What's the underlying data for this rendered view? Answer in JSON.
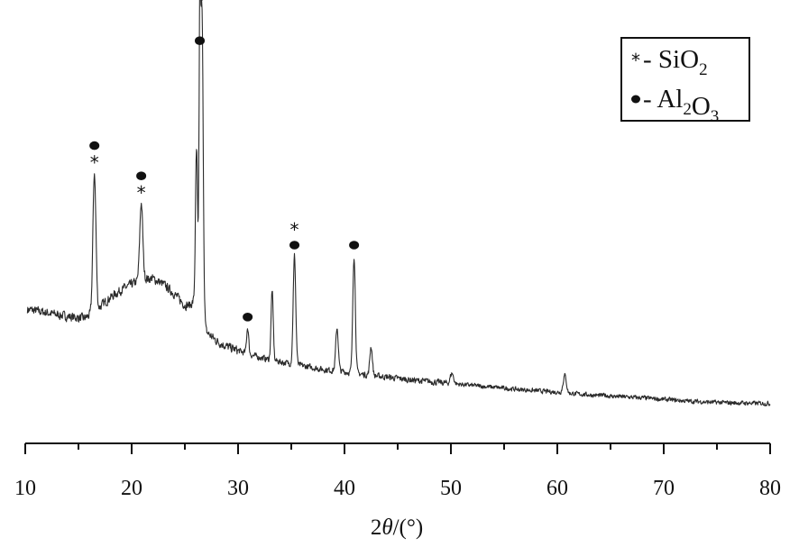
{
  "chart_data": {
    "type": "line",
    "xlabel": {
      "prefix": "2",
      "theta": "θ",
      "suffix": "/(°)"
    },
    "ylabel": "",
    "xlim": [
      10,
      80
    ],
    "ylim": [
      0,
      100
    ],
    "x_ticks": [
      10,
      20,
      30,
      40,
      50,
      60,
      70,
      80
    ],
    "grid": false,
    "legend_position": "top-right",
    "legend": [
      {
        "marker": "*",
        "dash": "-",
        "formula": [
          [
            "Si",
            false
          ],
          [
            "O",
            false
          ],
          [
            "2",
            true
          ]
        ]
      },
      {
        "marker": "●",
        "dash": "-",
        "formula": [
          [
            "Al",
            false
          ],
          [
            "2",
            true
          ],
          [
            "O",
            false
          ],
          [
            "3",
            true
          ]
        ]
      }
    ],
    "baseline": [
      [
        10,
        26
      ],
      [
        12,
        25
      ],
      [
        14,
        24
      ],
      [
        15.5,
        23.5
      ],
      [
        16.2,
        24.5
      ],
      [
        17,
        26.5
      ],
      [
        18,
        29
      ],
      [
        19,
        31
      ],
      [
        20,
        32.5
      ],
      [
        21,
        34
      ],
      [
        22,
        34
      ],
      [
        23,
        32.5
      ],
      [
        24,
        30
      ],
      [
        25,
        27
      ],
      [
        25.5,
        27
      ],
      [
        26,
        28.5
      ],
      [
        27,
        20
      ],
      [
        28,
        17.5
      ],
      [
        29,
        16
      ],
      [
        30,
        15
      ],
      [
        31,
        14
      ],
      [
        32,
        13.2
      ],
      [
        34,
        12
      ],
      [
        36,
        11
      ],
      [
        38,
        10
      ],
      [
        40,
        9.4
      ],
      [
        42,
        8.6
      ],
      [
        44,
        8
      ],
      [
        46,
        7.3
      ],
      [
        48,
        6.8
      ],
      [
        50,
        6.3
      ],
      [
        52,
        5.8
      ],
      [
        54,
        5.3
      ],
      [
        56,
        4.8
      ],
      [
        58,
        4.4
      ],
      [
        60,
        4.0
      ],
      [
        62,
        3.5
      ],
      [
        64,
        3.1
      ],
      [
        66,
        2.8
      ],
      [
        68,
        2.5
      ],
      [
        70,
        2.1
      ],
      [
        72,
        1.7
      ],
      [
        74,
        1.4
      ],
      [
        76,
        1.2
      ],
      [
        78,
        1.1
      ],
      [
        80,
        1.0
      ]
    ],
    "peaks": [
      {
        "x": 16.5,
        "y": 62,
        "w": 0.14,
        "markers": [
          "●",
          "*"
        ]
      },
      {
        "x": 20.9,
        "y": 54,
        "w": 0.14,
        "markers": [
          "●",
          "*"
        ]
      },
      {
        "x": 26.1,
        "y": 68,
        "w": 0.1,
        "markers": []
      },
      {
        "x": 26.6,
        "y": 105,
        "w": 0.12,
        "markers": [
          "*"
        ]
      },
      {
        "x": 26.4,
        "y": 94,
        "w": 0.07,
        "markers": [
          "●"
        ]
      },
      {
        "x": 30.9,
        "y": 21,
        "w": 0.1,
        "markers": [
          "●"
        ]
      },
      {
        "x": 33.2,
        "y": 31,
        "w": 0.1,
        "markers": []
      },
      {
        "x": 35.3,
        "y": 40,
        "w": 0.12,
        "markers": [
          "*",
          "●"
        ]
      },
      {
        "x": 39.3,
        "y": 21,
        "w": 0.12,
        "markers": []
      },
      {
        "x": 40.9,
        "y": 40,
        "w": 0.12,
        "markers": [
          "●"
        ]
      },
      {
        "x": 42.5,
        "y": 16,
        "w": 0.12,
        "markers": []
      },
      {
        "x": 50.1,
        "y": 9,
        "w": 0.15,
        "markers": []
      },
      {
        "x": 54.1,
        "y": 5.3,
        "w": 0.3,
        "markers": []
      },
      {
        "x": 57.5,
        "y": 4.5,
        "w": 0.15,
        "markers": []
      },
      {
        "x": 60.7,
        "y": 8.5,
        "w": 0.15,
        "markers": []
      },
      {
        "x": 64.5,
        "y": 3.2,
        "w": 0.2,
        "markers": []
      },
      {
        "x": 68.2,
        "y": 2.5,
        "w": 0.2,
        "markers": []
      }
    ]
  }
}
